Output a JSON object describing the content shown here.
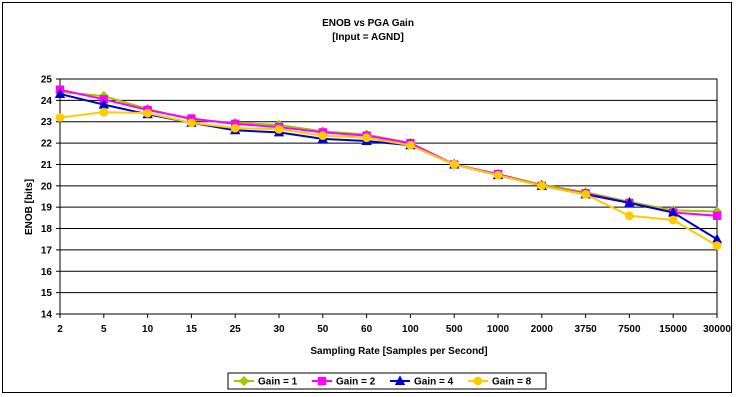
{
  "chart_data": {
    "type": "line",
    "title": "ENOB vs PGA Gain",
    "subtitle": "[Input = AGND]",
    "xlabel": "Sampling Rate [Samples per Second]",
    "ylabel": "ENOB [bits]",
    "categories": [
      "2",
      "5",
      "10",
      "15",
      "25",
      "30",
      "50",
      "60",
      "100",
      "500",
      "1000",
      "2000",
      "3750",
      "7500",
      "15000",
      "30000"
    ],
    "ylim": [
      14,
      25
    ],
    "yticks": [
      14,
      15,
      16,
      17,
      18,
      19,
      20,
      21,
      22,
      23,
      24,
      25
    ],
    "grid": true,
    "legend_position": "bottom",
    "series": [
      {
        "name": "Gain = 1",
        "color": "#99cc00",
        "marker": "diamond",
        "values": [
          24.4,
          24.2,
          23.6,
          23.1,
          22.95,
          22.85,
          22.55,
          22.4,
          22.0,
          21.0,
          20.55,
          20.05,
          19.7,
          19.25,
          18.85,
          18.8
        ]
      },
      {
        "name": "Gain = 2",
        "color": "#ff00ff",
        "marker": "square",
        "values": [
          24.5,
          24.05,
          23.55,
          23.15,
          22.9,
          22.75,
          22.5,
          22.35,
          22.0,
          21.0,
          20.55,
          20.0,
          19.65,
          19.2,
          18.75,
          18.6
        ]
      },
      {
        "name": "Gain = 4",
        "color": "#0000cc",
        "marker": "triangle",
        "values": [
          24.3,
          23.8,
          23.35,
          22.95,
          22.6,
          22.5,
          22.2,
          22.1,
          21.9,
          21.0,
          20.5,
          20.0,
          19.6,
          19.2,
          18.75,
          17.5
        ]
      },
      {
        "name": "Gain = 8",
        "color": "#ffcc00",
        "marker": "circle",
        "values": [
          23.2,
          23.45,
          23.4,
          22.95,
          22.7,
          22.65,
          22.35,
          22.25,
          21.9,
          21.0,
          20.5,
          20.0,
          19.6,
          18.6,
          18.4,
          17.2
        ]
      }
    ]
  }
}
